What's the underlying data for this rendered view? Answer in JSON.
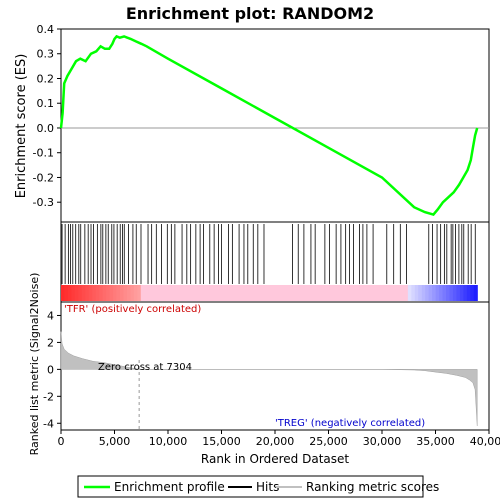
{
  "chart_data": {
    "type": "line",
    "title": "Enrichment plot: RANDOM2",
    "xlabel": "Rank in Ordered Dataset",
    "top_panel": {
      "ylabel": "Enrichment score (ES)",
      "ylim": [
        -0.38,
        0.4
      ],
      "yticks": [
        "0.4",
        "0.3",
        "0.2",
        "0.1",
        "0.0",
        "-0.1",
        "-0.2",
        "-0.3"
      ],
      "ytick_values": [
        0.4,
        0.3,
        0.2,
        0.1,
        0.0,
        -0.1,
        -0.2,
        -0.3
      ],
      "series": [
        {
          "name": "Enrichment profile",
          "color": "#00ff00",
          "x": [
            0,
            150,
            300,
            600,
            1000,
            1400,
            1800,
            2300,
            2800,
            3300,
            3700,
            4100,
            4500,
            4800,
            5000,
            5200,
            5500,
            5900,
            6200,
            6500,
            7000,
            7500,
            8000,
            10000,
            15000,
            20000,
            25000,
            30000,
            33000,
            34000,
            34800,
            35200,
            35700,
            36200,
            36700,
            37200,
            37600,
            38000,
            38300,
            38500,
            38700,
            38900
          ],
          "y": [
            0.0,
            0.06,
            0.18,
            0.21,
            0.24,
            0.27,
            0.28,
            0.27,
            0.3,
            0.31,
            0.33,
            0.32,
            0.32,
            0.34,
            0.36,
            0.37,
            0.365,
            0.37,
            0.365,
            0.36,
            0.35,
            0.34,
            0.33,
            0.28,
            0.16,
            0.04,
            -0.08,
            -0.2,
            -0.32,
            -0.34,
            -0.35,
            -0.33,
            -0.3,
            -0.28,
            -0.26,
            -0.23,
            -0.2,
            -0.17,
            -0.13,
            -0.08,
            -0.03,
            0.0
          ]
        }
      ]
    },
    "bottom_panel": {
      "ylabel": "Ranked list metric (Signal2Noise)",
      "ylim": [
        -4.5,
        5
      ],
      "yticks": [
        "4",
        "2",
        "0",
        "-2",
        "-4"
      ],
      "ytick_values": [
        4,
        2,
        0,
        -2,
        -4
      ],
      "zero_cross_label": "Zero cross at 7304",
      "zero_cross": 7304,
      "pos_label": "'TFR' (positively correlated)",
      "neg_label": "'TREG' (negatively correlated)",
      "series": [
        {
          "name": "Ranking metric scores",
          "x": [
            0,
            100,
            300,
            700,
            1200,
            2000,
            3000,
            4000,
            5000,
            6000,
            7000,
            7304,
            10000,
            20000,
            30000,
            33000,
            34000,
            35000,
            36000,
            37000,
            37800,
            38200,
            38500,
            38700,
            38900
          ],
          "y": [
            2.8,
            1.9,
            1.5,
            1.2,
            1.0,
            0.8,
            0.6,
            0.5,
            0.35,
            0.2,
            0.05,
            0.0,
            0.0,
            0.0,
            0.0,
            -0.05,
            -0.1,
            -0.2,
            -0.3,
            -0.45,
            -0.6,
            -0.8,
            -1.0,
            -1.5,
            -4.2
          ]
        }
      ]
    },
    "xlim": [
      0,
      40000
    ],
    "xticks": [
      "0",
      "5,000",
      "10,000",
      "15,000",
      "20,000",
      "25,000",
      "30,000",
      "35,000",
      "40,000"
    ],
    "xtick_values": [
      0,
      5000,
      10000,
      15000,
      20000,
      25000,
      30000,
      35000,
      40000
    ],
    "legend": [
      "Enrichment profile",
      "Hits",
      "Ranking metric scores"
    ],
    "legend_placement": "bottom",
    "colors": {
      "profile": "#00ff00",
      "hits": "#000000",
      "positive": "#ff0000",
      "negative": "#0000ff",
      "metric_fill": "#c0c0c0",
      "pos_label": "#cc0000",
      "neg_label": "#0000cc"
    }
  }
}
